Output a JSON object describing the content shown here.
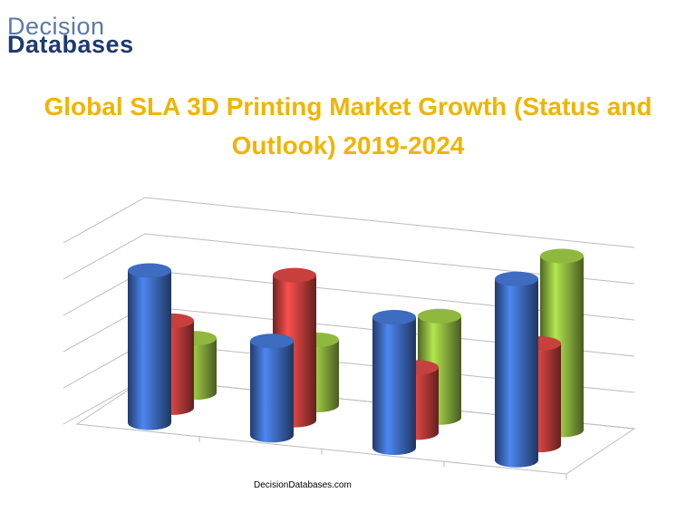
{
  "logo": {
    "line1": "Decision",
    "line2": "Databases"
  },
  "footer": "DecisionDatabases.com",
  "chart_data": {
    "type": "cylinder3d",
    "title": "Global SLA 3D Printing Market Growth (Status and Outlook) 2019-2024",
    "categories": [
      null,
      null,
      null,
      null
    ],
    "series": [
      {
        "name": null,
        "color": "#3d6cc0",
        "values": [
          4.2,
          2.6,
          3.6,
          5.0
        ]
      },
      {
        "name": null,
        "color": "#c8403d",
        "values": [
          2.4,
          4.0,
          1.8,
          2.8
        ]
      },
      {
        "name": null,
        "color": "#8fb83f",
        "values": [
          1.5,
          1.8,
          2.8,
          4.8
        ]
      }
    ],
    "ylim": [
      0,
      5
    ],
    "yticks": [
      0,
      1,
      2,
      3,
      4,
      5
    ],
    "grid": true
  }
}
